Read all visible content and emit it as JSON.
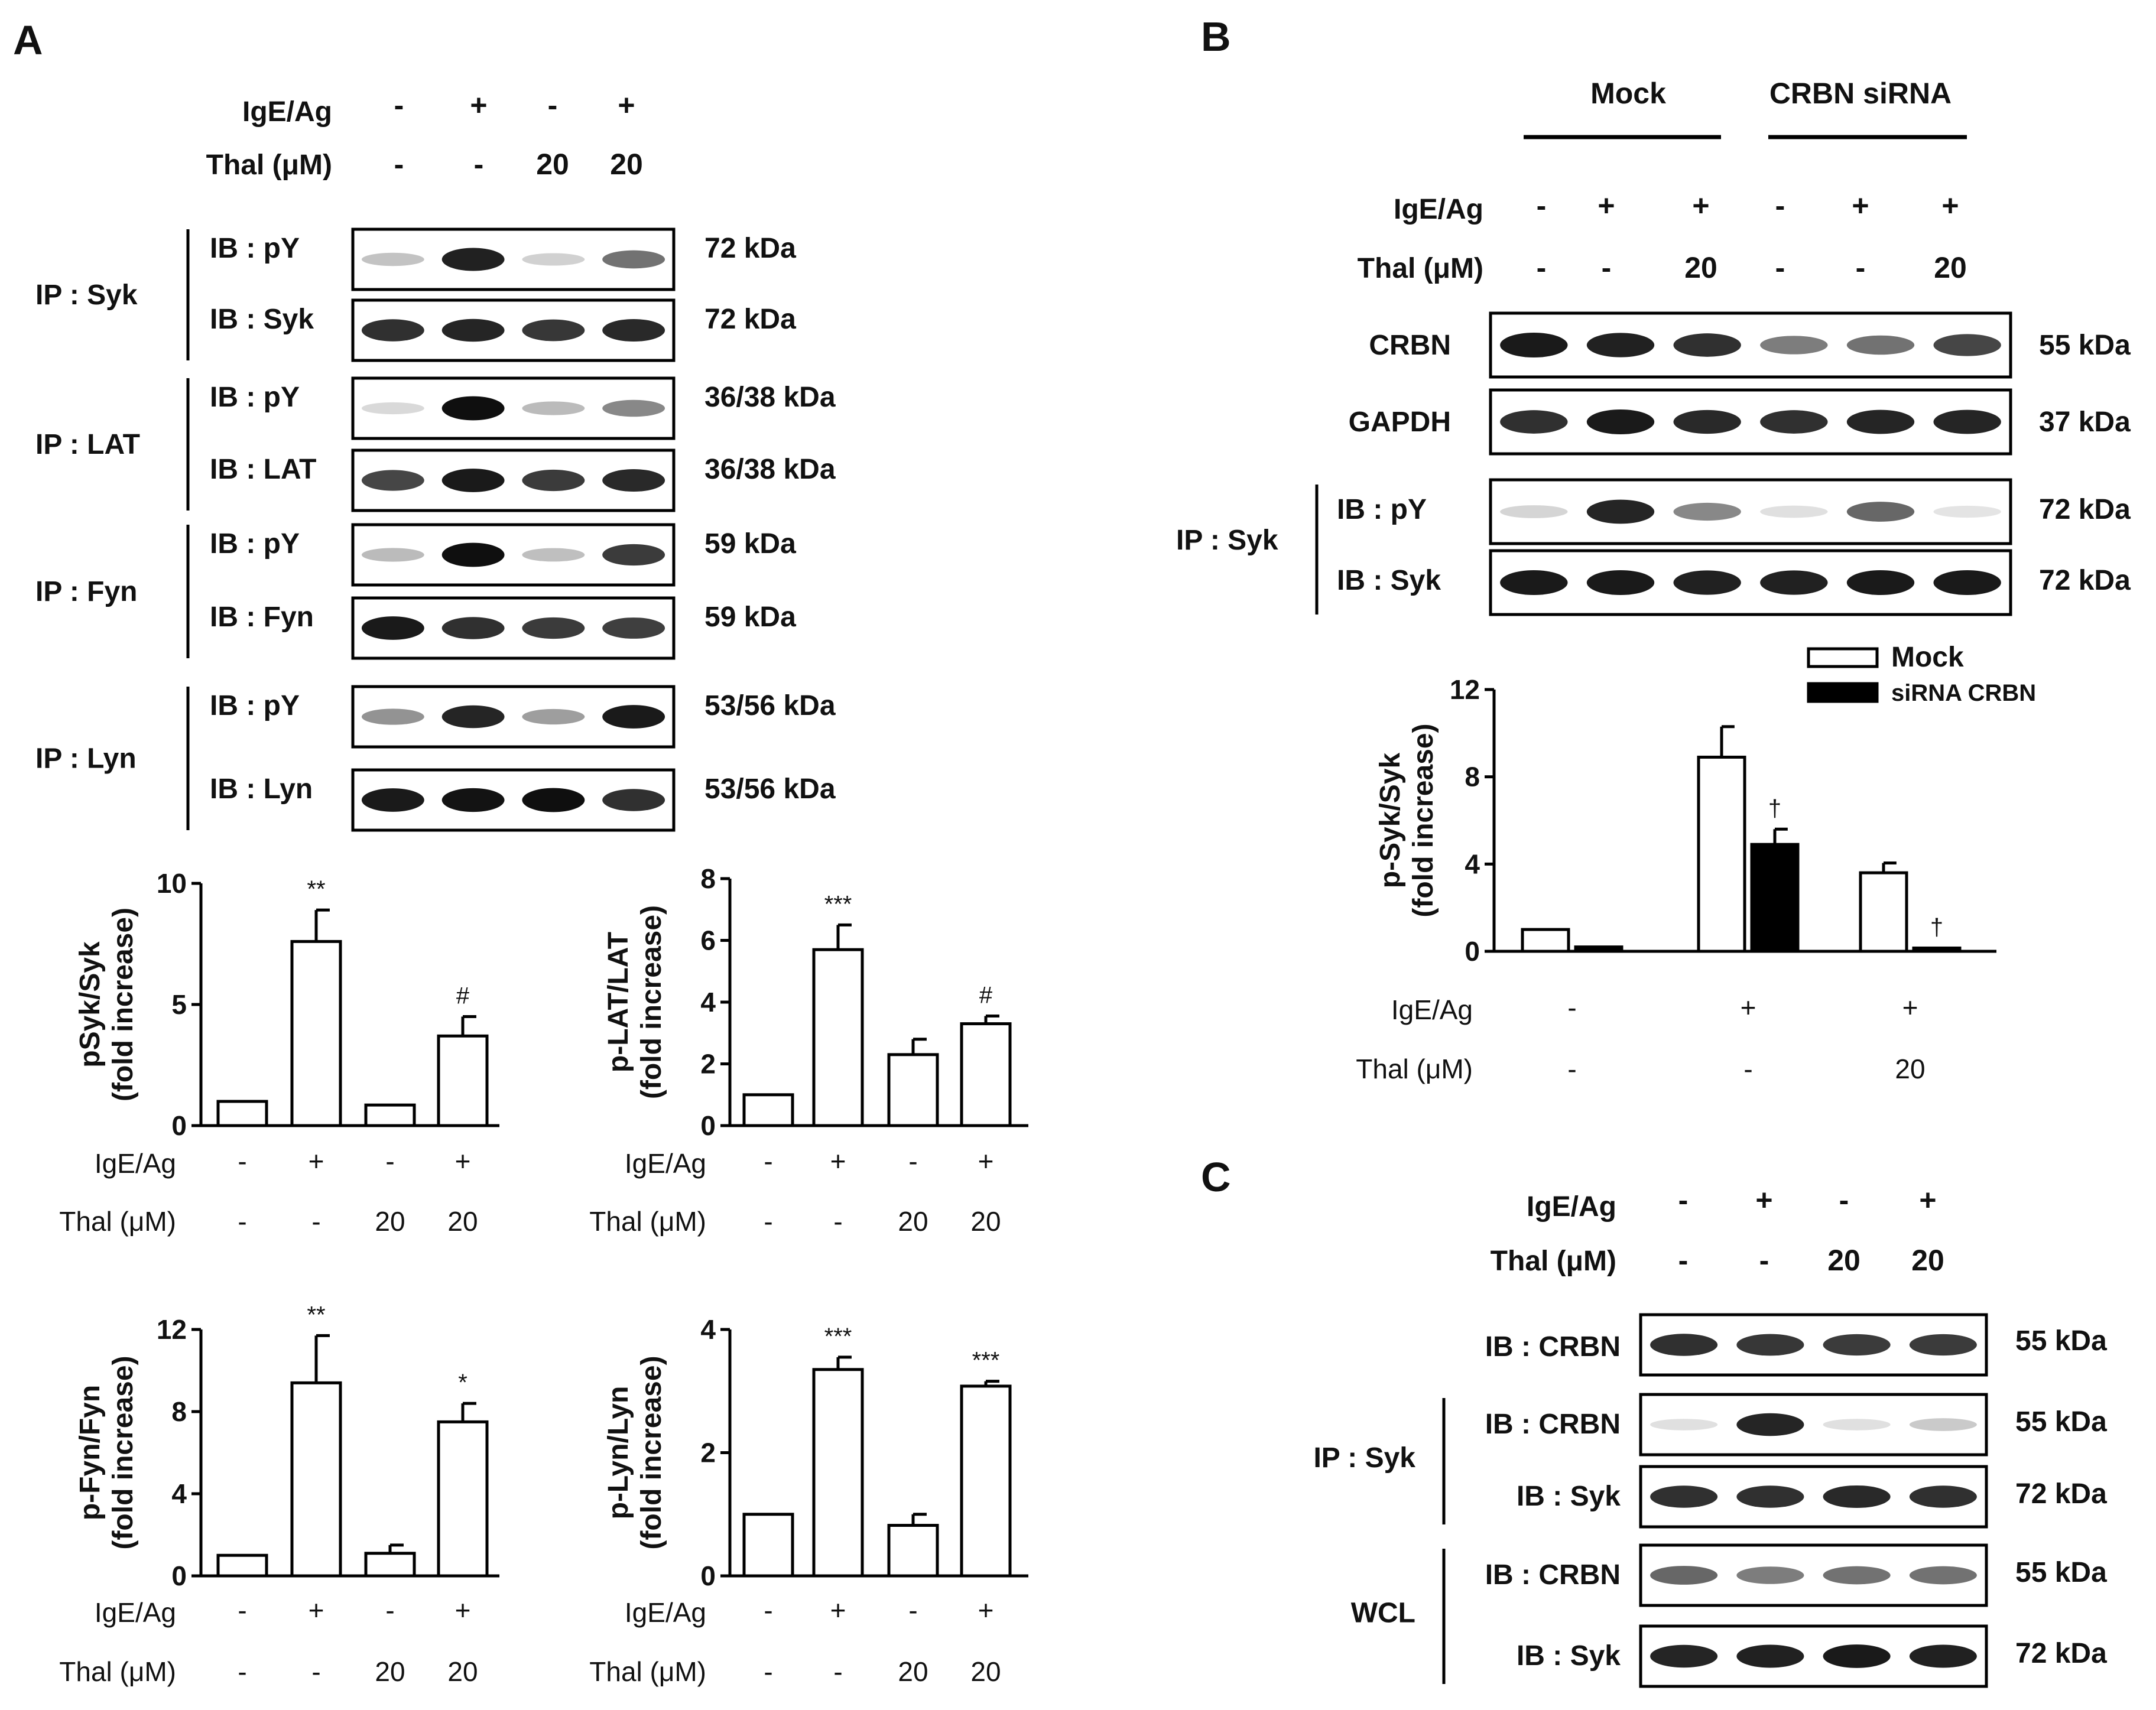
{
  "panels": {
    "A": {
      "label": "A",
      "header": {
        "ige_label": "IgE/Ag",
        "ige_values": [
          "-",
          "+",
          "-",
          "+"
        ],
        "thal_label": "Thal (μM)",
        "thal_values": [
          "-",
          "-",
          "20",
          "20"
        ]
      },
      "blot_groups": [
        {
          "ip": "IP : Syk",
          "rows": [
            {
              "ib": "IB : pY",
              "kda": "72 kDa",
              "bands": [
                0.18,
                0.92,
                0.12,
                0.55
              ]
            },
            {
              "ib": "IB : Syk",
              "kda": "72 kDa",
              "bands": [
                0.85,
                0.9,
                0.82,
                0.88
              ]
            }
          ]
        },
        {
          "ip": "IP : LAT",
          "rows": [
            {
              "ib": "IB : pY",
              "kda": "36/38 kDa",
              "bands": [
                0.08,
                1.0,
                0.22,
                0.45
              ]
            },
            {
              "ib": "IB : LAT",
              "kda": "36/38 kDa",
              "bands": [
                0.75,
                0.95,
                0.8,
                0.88
              ]
            }
          ]
        },
        {
          "ip": "IP : Fyn",
          "rows": [
            {
              "ib": "IB : pY",
              "kda": "59 kDa",
              "bands": [
                0.22,
                1.0,
                0.2,
                0.8
              ]
            },
            {
              "ib": "IB : Fyn",
              "kda": "59 kDa",
              "bands": [
                0.95,
                0.85,
                0.8,
                0.78
              ]
            }
          ]
        },
        {
          "ip": "IP : Lyn",
          "rows": [
            {
              "ib": "IB : pY",
              "kda": "53/56 kDa",
              "bands": [
                0.4,
                0.9,
                0.35,
                0.95
              ]
            },
            {
              "ib": "IB : Lyn",
              "kda": "53/56 kDa",
              "bands": [
                0.95,
                0.98,
                1.0,
                0.85
              ]
            }
          ]
        }
      ]
    },
    "B": {
      "label": "B",
      "groups": [
        "Mock",
        "CRBN siRNA"
      ],
      "header": {
        "ige_label": "IgE/Ag",
        "ige_values": [
          "-",
          "+",
          "+",
          "-",
          "+",
          "+"
        ],
        "thal_label": "Thal (μM)",
        "thal_values": [
          "-",
          "-",
          "20",
          "-",
          "-",
          "20"
        ]
      },
      "blots": [
        {
          "name": "CRBN",
          "kda": "55 kDa",
          "bands": [
            0.95,
            0.92,
            0.85,
            0.5,
            0.55,
            0.75
          ]
        },
        {
          "name": "GAPDH",
          "kda": "37 kDa",
          "bands": [
            0.85,
            0.95,
            0.88,
            0.85,
            0.9,
            0.9
          ]
        }
      ],
      "ip_group": {
        "ip": "IP : Syk",
        "rows": [
          {
            "ib": "IB : pY",
            "kda": "72 kDa",
            "bands": [
              0.1,
              0.9,
              0.45,
              0.05,
              0.6,
              0.03
            ]
          },
          {
            "ib": "IB : Syk",
            "kda": "72 kDa",
            "bands": [
              0.95,
              0.95,
              0.92,
              0.92,
              0.95,
              0.95
            ]
          }
        ]
      }
    },
    "C": {
      "label": "C",
      "header": {
        "ige_label": "IgE/Ag",
        "ige_values": [
          "-",
          "+",
          "-",
          "+"
        ],
        "thal_label": "Thal (μM)",
        "thal_values": [
          "-",
          "-",
          "20",
          "20"
        ]
      },
      "blots": [
        {
          "name": "IB : CRBN",
          "kda": "55 kDa",
          "bands": [
            0.85,
            0.82,
            0.8,
            0.8
          ]
        }
      ],
      "groups": [
        {
          "label": "IP : Syk",
          "rows": [
            {
              "ib": "IB : CRBN",
              "kda": "55 kDa",
              "bands": [
                0.05,
                0.9,
                0.05,
                0.15
              ]
            },
            {
              "ib": "IB : Syk",
              "kda": "72 kDa",
              "bands": [
                0.85,
                0.85,
                0.88,
                0.85
              ]
            }
          ]
        },
        {
          "label": "WCL",
          "rows": [
            {
              "ib": "IB : CRBN",
              "kda": "55 kDa",
              "bands": [
                0.6,
                0.5,
                0.55,
                0.55
              ]
            },
            {
              "ib": "IB : Syk",
              "kda": "72 kDa",
              "bands": [
                0.9,
                0.92,
                0.95,
                0.92
              ]
            }
          ]
        }
      ]
    }
  },
  "chart_data": [
    {
      "type": "bar",
      "panel": "A",
      "ylabel_line1": "pSyk/Syk",
      "ylabel_line2": "(fold increase)",
      "ylim": [
        0,
        10
      ],
      "yticks": [
        0,
        5,
        10
      ],
      "values": [
        1.0,
        7.6,
        0.85,
        3.7
      ],
      "errors": [
        0,
        1.3,
        0,
        0.8
      ],
      "annotations": [
        "",
        "**",
        "",
        "#"
      ],
      "ige_label": "IgE/Ag",
      "ige_values": [
        "-",
        "+",
        "-",
        "+"
      ],
      "thal_label": "Thal (μM)",
      "thal_values": [
        "-",
        "-",
        "20",
        "20"
      ]
    },
    {
      "type": "bar",
      "panel": "A",
      "ylabel_line1": "p-LAT/LAT",
      "ylabel_line2": "(fold increase)",
      "ylim": [
        0,
        8
      ],
      "yticks": [
        0,
        2,
        4,
        6,
        8
      ],
      "values": [
        1.0,
        5.7,
        2.3,
        3.3
      ],
      "errors": [
        0,
        0.8,
        0.5,
        0.25
      ],
      "annotations": [
        "",
        "***",
        "",
        "#"
      ],
      "ige_label": "IgE/Ag",
      "ige_values": [
        "-",
        "+",
        "-",
        "+"
      ],
      "thal_label": "Thal (μM)",
      "thal_values": [
        "-",
        "-",
        "20",
        "20"
      ]
    },
    {
      "type": "bar",
      "panel": "A",
      "ylabel_line1": "p-Fyn/Fyn",
      "ylabel_line2": "(fold increase)",
      "ylim": [
        0,
        12
      ],
      "yticks": [
        0,
        4,
        8,
        12
      ],
      "values": [
        1.0,
        9.4,
        1.1,
        7.5
      ],
      "errors": [
        0,
        2.3,
        0.4,
        0.9
      ],
      "annotations": [
        "",
        "**",
        "",
        "*"
      ],
      "ige_label": "IgE/Ag",
      "ige_values": [
        "-",
        "+",
        "-",
        "+"
      ],
      "thal_label": "Thal (μM)",
      "thal_values": [
        "-",
        "-",
        "20",
        "20"
      ]
    },
    {
      "type": "bar",
      "panel": "A",
      "ylabel_line1": "p-Lyn/Lyn",
      "ylabel_line2": "(fold increase)",
      "ylim": [
        0,
        4
      ],
      "yticks": [
        0,
        2,
        4
      ],
      "values": [
        1.0,
        3.35,
        0.82,
        3.08
      ],
      "errors": [
        0,
        0.2,
        0.18,
        0.08
      ],
      "annotations": [
        "",
        "***",
        "",
        "***"
      ],
      "ige_label": "IgE/Ag",
      "ige_values": [
        "-",
        "+",
        "-",
        "+"
      ],
      "thal_label": "Thal (μM)",
      "thal_values": [
        "-",
        "-",
        "20",
        "20"
      ]
    },
    {
      "type": "bar",
      "panel": "B",
      "ylabel_line1": "p-Syk/Syk",
      "ylabel_line2": "(fold increase)",
      "ylim": [
        0,
        12
      ],
      "yticks": [
        0,
        4,
        8,
        12
      ],
      "series": [
        {
          "name": "Mock",
          "fill": "#ffffff",
          "values": [
            1.0,
            8.9,
            3.6
          ],
          "errors": [
            0,
            1.4,
            0.45
          ],
          "annotations": [
            "",
            "",
            ""
          ]
        },
        {
          "name": "siRNA CRBN",
          "fill": "#000000",
          "values": [
            0.2,
            4.9,
            0.15
          ],
          "errors": [
            0,
            0.7,
            0
          ],
          "annotations": [
            "",
            "†",
            "†"
          ]
        }
      ],
      "ige_label": "IgE/Ag",
      "ige_values": [
        "-",
        "+",
        "+"
      ],
      "thal_label": "Thal (μM)",
      "thal_values": [
        "-",
        "-",
        "20"
      ]
    }
  ]
}
